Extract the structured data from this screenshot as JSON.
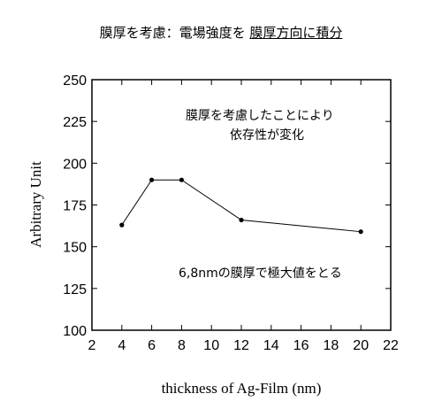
{
  "chart_data": {
    "type": "line",
    "title_plain": "膜厚を考慮：電場強度を ",
    "title_underlined": "膜厚方向に積分",
    "xlabel": "thickness of Ag-Film (nm)",
    "ylabel": "Arbitrary Unit",
    "xlim": [
      2,
      22
    ],
    "ylim": [
      100,
      250
    ],
    "xticks": [
      "2",
      "4",
      "6",
      "8",
      "10",
      "12",
      "14",
      "16",
      "18",
      "20",
      "22"
    ],
    "yticks": [
      "100",
      "125",
      "150",
      "175",
      "200",
      "225",
      "250"
    ],
    "series": [
      {
        "x": [
          4,
          6,
          8,
          12,
          20
        ],
        "y": [
          163,
          190,
          190,
          166,
          159
        ]
      }
    ],
    "annotations": {
      "top_line1": "膜厚を考慮したことにより",
      "top_line2": "依存性が変化",
      "bottom": "6,8nmの膜厚で極大値をとる"
    },
    "grid": false
  }
}
